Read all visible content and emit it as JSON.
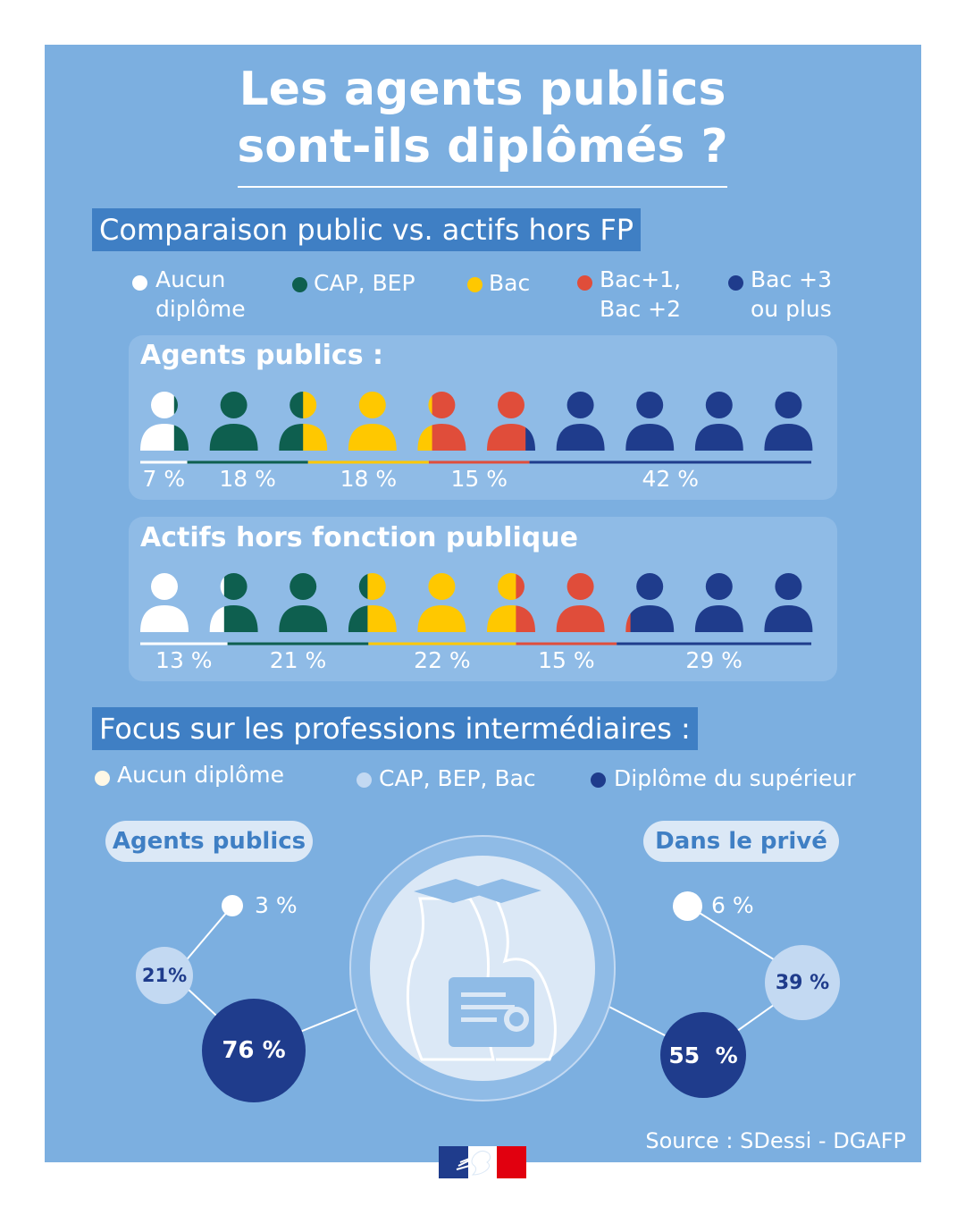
{
  "title_line1": "Les agents publics",
  "title_line2": "sont-ils diplômés ?",
  "section1_label": "Comparaison public vs. actifs hors FP",
  "legend1": [
    {
      "line1": "Aucun",
      "line2": "diplôme",
      "color": "#ffffff"
    },
    {
      "line1": "CAP, BEP",
      "line2": "",
      "color": "#0e5f4f"
    },
    {
      "line1": "Bac",
      "line2": "",
      "color": "#ffc800"
    },
    {
      "line1": "Bac+1,",
      "line2": "Bac +2",
      "color": "#e04d3a"
    },
    {
      "line1": "Bac +3",
      "line2": "ou plus",
      "color": "#1f3c8c"
    }
  ],
  "chart_data": [
    {
      "type": "bar",
      "title": "Agents publics :",
      "categories": [
        "Aucun diplôme",
        "CAP, BEP",
        "Bac",
        "Bac+1, Bac +2",
        "Bac +3 ou plus"
      ],
      "values": [
        7,
        18,
        18,
        15,
        42
      ],
      "labels": [
        "7 %",
        "18 %",
        "18 %",
        "15 %",
        "42 %"
      ],
      "colors": [
        "#ffffff",
        "#0e5f4f",
        "#ffc800",
        "#e04d3a",
        "#1f3c8c"
      ]
    },
    {
      "type": "bar",
      "title": "Actifs hors fonction publique",
      "categories": [
        "Aucun diplôme",
        "CAP, BEP",
        "Bac",
        "Bac+1, Bac +2",
        "Bac +3 ou plus"
      ],
      "values": [
        13,
        21,
        22,
        15,
        29
      ],
      "labels": [
        "13 %",
        "21 %",
        "22 %",
        "15 %",
        "29 %"
      ],
      "colors": [
        "#ffffff",
        "#0e5f4f",
        "#ffc800",
        "#e04d3a",
        "#1f3c8c"
      ]
    },
    {
      "type": "pie",
      "title": "Agents publics",
      "categories": [
        "Aucun diplôme",
        "CAP, BEP, Bac",
        "Diplôme du supérieur"
      ],
      "values": [
        3,
        21,
        76
      ],
      "labels": [
        "3 %",
        "21%",
        "76 %"
      ]
    },
    {
      "type": "pie",
      "title": "Dans le privé",
      "categories": [
        "Aucun diplôme",
        "CAP, BEP, Bac",
        "Diplôme du supérieur"
      ],
      "values": [
        6,
        39,
        55
      ],
      "labels": [
        "6 %",
        "39 %",
        "55  %"
      ]
    }
  ],
  "section2_label": "Focus sur les professions intermédiaires :",
  "legend2": [
    {
      "label": "Aucun diplôme",
      "color": "#fff8e6"
    },
    {
      "label": "CAP, BEP, Bac",
      "color": "#c3d9f2"
    },
    {
      "label": "Diplôme du supérieur",
      "color": "#1f3c8c"
    }
  ],
  "colors": {
    "panel": "#7cafe0",
    "label_bg": "#3f7fc4",
    "card": "#8fbbe6",
    "navy": "#1f3c8c",
    "light": "#c3d9f2"
  },
  "icons": {
    "illustration": "graduates-diploma-icon",
    "logo": "marianne-logo-icon"
  },
  "source": "Source : SDessi - DGAFP"
}
